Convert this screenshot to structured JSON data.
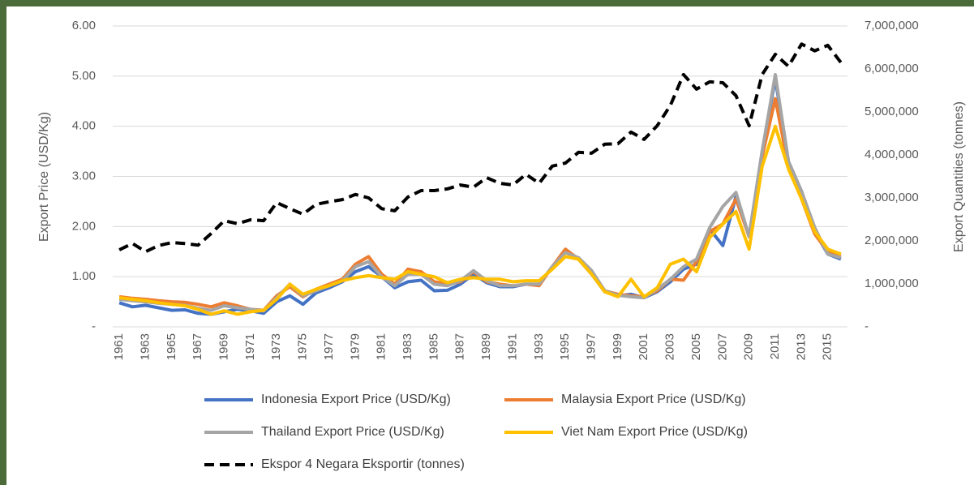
{
  "chart_data": {
    "type": "line",
    "x": [
      1961,
      1962,
      1963,
      1964,
      1965,
      1966,
      1967,
      1968,
      1969,
      1970,
      1971,
      1972,
      1973,
      1974,
      1975,
      1976,
      1977,
      1978,
      1979,
      1980,
      1981,
      1982,
      1983,
      1984,
      1985,
      1986,
      1987,
      1988,
      1989,
      1990,
      1991,
      1992,
      1993,
      1994,
      1995,
      1996,
      1997,
      1998,
      1999,
      2000,
      2001,
      2002,
      2003,
      2004,
      2005,
      2006,
      2007,
      2008,
      2009,
      2010,
      2011,
      2012,
      2013,
      2014,
      2015,
      2016
    ],
    "xlim": [
      1960.5,
      2016.5
    ],
    "xticks": [
      1961,
      1963,
      1965,
      1967,
      1969,
      1971,
      1973,
      1975,
      1977,
      1979,
      1981,
      1983,
      1985,
      1987,
      1989,
      1991,
      1993,
      1995,
      1997,
      1999,
      2001,
      2003,
      2005,
      2007,
      2009,
      2011,
      2013,
      2015
    ],
    "ylabel": "Export Price (USD/Kg)",
    "y2label": "Export Quantities (tonnes)",
    "ylim": [
      0,
      6
    ],
    "yticks": [
      {
        "value": 0,
        "label": "-"
      },
      {
        "value": 1,
        "label": "1.00"
      },
      {
        "value": 2,
        "label": "2.00"
      },
      {
        "value": 3,
        "label": "3.00"
      },
      {
        "value": 4,
        "label": "4.00"
      },
      {
        "value": 5,
        "label": "5.00"
      },
      {
        "value": 6,
        "label": "6.00"
      }
    ],
    "y2lim": [
      0,
      7000000
    ],
    "y2ticks": [
      {
        "value": 0,
        "label": "-"
      },
      {
        "value": 1000000,
        "label": "1,000,000"
      },
      {
        "value": 2000000,
        "label": "2,000,000"
      },
      {
        "value": 3000000,
        "label": "3,000,000"
      },
      {
        "value": 4000000,
        "label": "4,000,000"
      },
      {
        "value": 5000000,
        "label": "5,000,000"
      },
      {
        "value": 6000000,
        "label": "6,000,000"
      },
      {
        "value": 7000000,
        "label": "7,000,000"
      }
    ],
    "grid": true,
    "legend": "bottom",
    "series": [
      {
        "name": "Indonesia Export Price (USD/Kg)",
        "color": "#4472c4",
        "axis": "y",
        "values": [
          0.48,
          0.4,
          0.43,
          0.38,
          0.33,
          0.34,
          0.27,
          0.25,
          0.3,
          0.35,
          0.32,
          0.27,
          0.5,
          0.62,
          0.45,
          0.68,
          0.78,
          0.9,
          1.1,
          1.2,
          1.0,
          0.78,
          0.9,
          0.93,
          0.72,
          0.73,
          0.85,
          1.05,
          0.88,
          0.8,
          0.8,
          0.85,
          0.85,
          1.2,
          1.5,
          1.35,
          1.05,
          0.7,
          0.62,
          0.65,
          0.58,
          0.7,
          0.9,
          1.15,
          1.25,
          1.95,
          1.62,
          2.6,
          1.8,
          3.5,
          4.95,
          3.3,
          2.7,
          1.9,
          1.45,
          1.35
        ]
      },
      {
        "name": "Malaysia Export Price (USD/Kg)",
        "color": "#ed7d31",
        "axis": "y",
        "values": [
          0.6,
          0.57,
          0.55,
          0.52,
          0.5,
          0.49,
          0.45,
          0.4,
          0.48,
          0.42,
          0.35,
          0.33,
          0.62,
          0.8,
          0.6,
          0.75,
          0.85,
          0.95,
          1.25,
          1.4,
          1.05,
          0.85,
          1.15,
          1.1,
          0.9,
          0.85,
          0.9,
          1.1,
          0.9,
          0.85,
          0.82,
          0.85,
          0.82,
          1.2,
          1.55,
          1.35,
          1.1,
          0.72,
          0.65,
          0.62,
          0.6,
          0.72,
          0.95,
          0.93,
          1.3,
          1.9,
          2.05,
          2.55,
          1.8,
          3.4,
          4.55,
          3.2,
          2.55,
          1.85,
          1.5,
          1.4
        ]
      },
      {
        "name": "Thailand Export Price (USD/Kg)",
        "color": "#a5a5a5",
        "axis": "y",
        "values": [
          0.55,
          0.52,
          0.5,
          0.47,
          0.45,
          0.43,
          0.37,
          0.33,
          0.42,
          0.38,
          0.35,
          0.32,
          0.58,
          0.85,
          0.62,
          0.72,
          0.82,
          0.92,
          1.2,
          1.3,
          1.0,
          0.82,
          1.05,
          1.05,
          0.85,
          0.82,
          0.92,
          1.12,
          0.92,
          0.82,
          0.82,
          0.85,
          0.85,
          1.2,
          1.48,
          1.38,
          1.12,
          0.72,
          0.63,
          0.6,
          0.58,
          0.75,
          0.95,
          1.2,
          1.35,
          1.98,
          2.4,
          2.68,
          1.8,
          3.5,
          5.03,
          3.3,
          2.7,
          1.98,
          1.45,
          1.38
        ]
      },
      {
        "name": "Viet Nam Export Price (USD/Kg)",
        "color": "#ffc000",
        "axis": "y",
        "values": [
          0.58,
          0.55,
          0.52,
          0.48,
          0.45,
          0.42,
          0.35,
          0.25,
          0.32,
          0.25,
          0.3,
          0.33,
          0.55,
          0.85,
          0.65,
          0.75,
          0.82,
          0.92,
          0.98,
          1.02,
          0.98,
          0.95,
          1.1,
          1.05,
          1.0,
          0.88,
          0.95,
          0.98,
          0.95,
          0.95,
          0.9,
          0.92,
          0.92,
          1.15,
          1.4,
          1.35,
          1.05,
          0.7,
          0.6,
          0.95,
          0.6,
          0.78,
          1.25,
          1.35,
          1.1,
          1.78,
          2.05,
          2.3,
          1.55,
          3.2,
          4.0,
          3.15,
          2.55,
          1.9,
          1.55,
          1.45
        ]
      },
      {
        "name": "Ekspor 4 Negara Eksportir (tonnes)",
        "color": "#000000",
        "axis": "y2",
        "line_style": "dashed",
        "values": [
          1790000,
          1940000,
          1750000,
          1890000,
          1960000,
          1940000,
          1900000,
          2170000,
          2470000,
          2400000,
          2490000,
          2470000,
          2890000,
          2750000,
          2620000,
          2850000,
          2910000,
          2960000,
          3080000,
          3000000,
          2750000,
          2700000,
          3020000,
          3170000,
          3170000,
          3210000,
          3300000,
          3250000,
          3470000,
          3340000,
          3300000,
          3550000,
          3340000,
          3740000,
          3810000,
          4060000,
          4040000,
          4250000,
          4260000,
          4530000,
          4360000,
          4680000,
          5150000,
          5870000,
          5530000,
          5700000,
          5680000,
          5380000,
          4680000,
          5870000,
          6340000,
          6060000,
          6580000,
          6420000,
          6550000,
          6150000
        ]
      }
    ]
  }
}
